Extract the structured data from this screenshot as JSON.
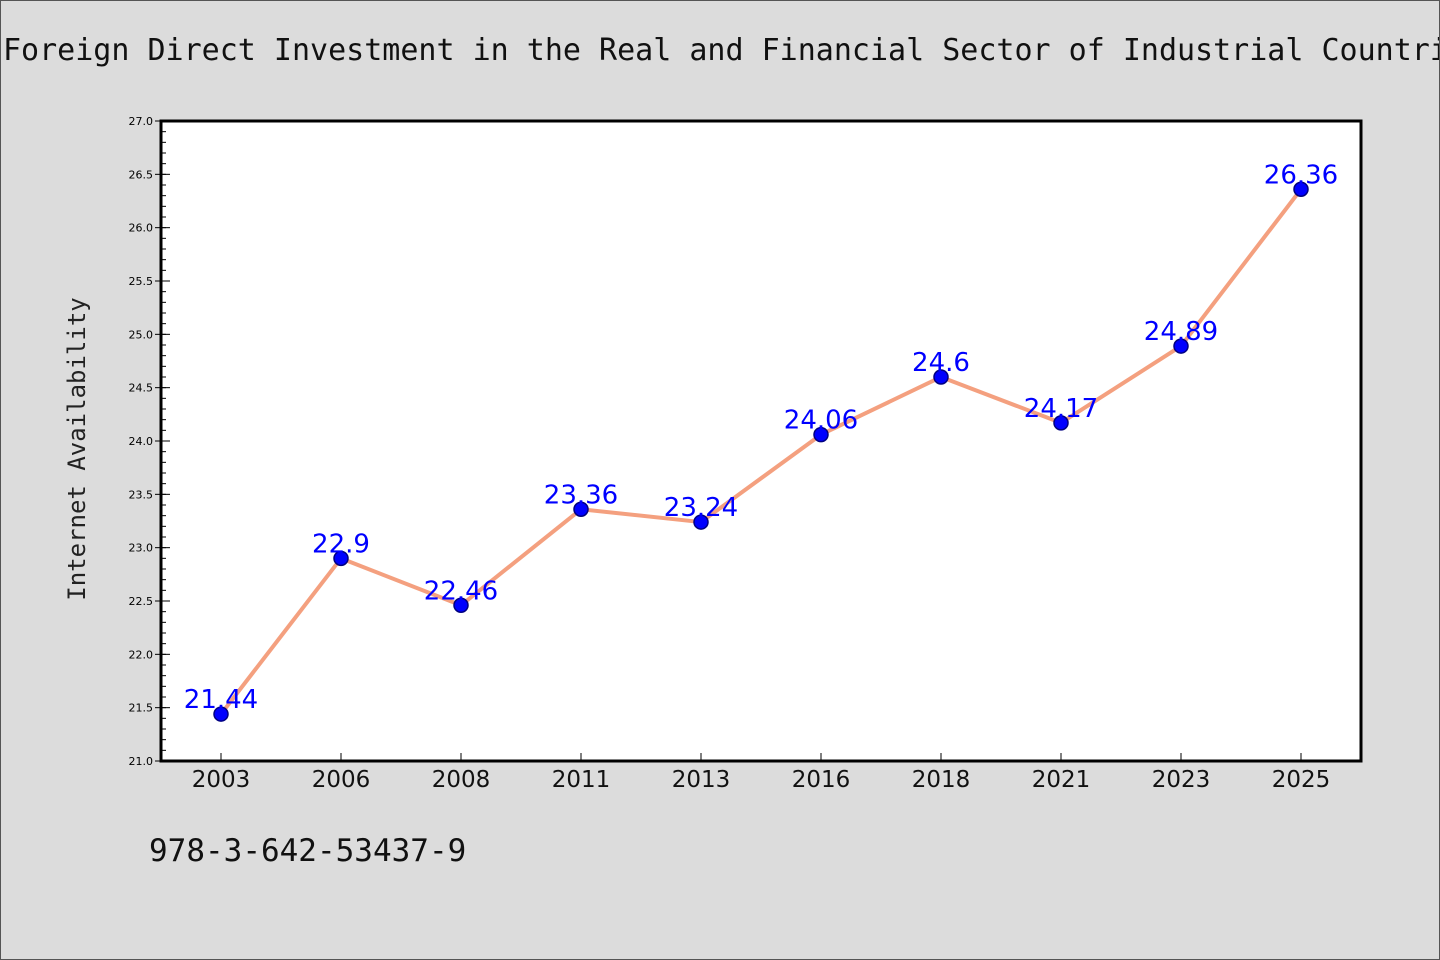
{
  "chart_data": {
    "type": "line",
    "title": "Foreign Direct Investment in the Real and Financial Sector of Industrial Countri",
    "xlabel": "",
    "ylabel": "Internet Availability",
    "categories": [
      "2003",
      "2006",
      "2008",
      "2011",
      "2013",
      "2016",
      "2018",
      "2021",
      "2023",
      "2025"
    ],
    "values": [
      21.44,
      22.9,
      22.46,
      23.36,
      23.24,
      24.06,
      24.6,
      24.17,
      24.89,
      26.36
    ],
    "data_labels": [
      "21.44",
      "22.9",
      "22.46",
      "23.36",
      "23.24",
      "24.06",
      "24.6",
      "24.17",
      "24.89",
      "26.36"
    ],
    "ylim": [
      21.0,
      27.0
    ],
    "yticks": [
      "21.0",
      "21.5",
      "22.0",
      "22.5",
      "23.0",
      "23.5",
      "24.0",
      "24.5",
      "25.0",
      "25.5",
      "26.0",
      "26.5",
      "27.0"
    ],
    "grid": false,
    "legend": "none",
    "colors": {
      "line": "#f4a07f",
      "marker": "#0000ff",
      "marker_edge": "#000080",
      "data_label": "#0000ff",
      "background": "#dcdcdc",
      "plot_background": "#ffffff"
    }
  },
  "footer": {
    "code": "978-3-642-53437-9"
  }
}
